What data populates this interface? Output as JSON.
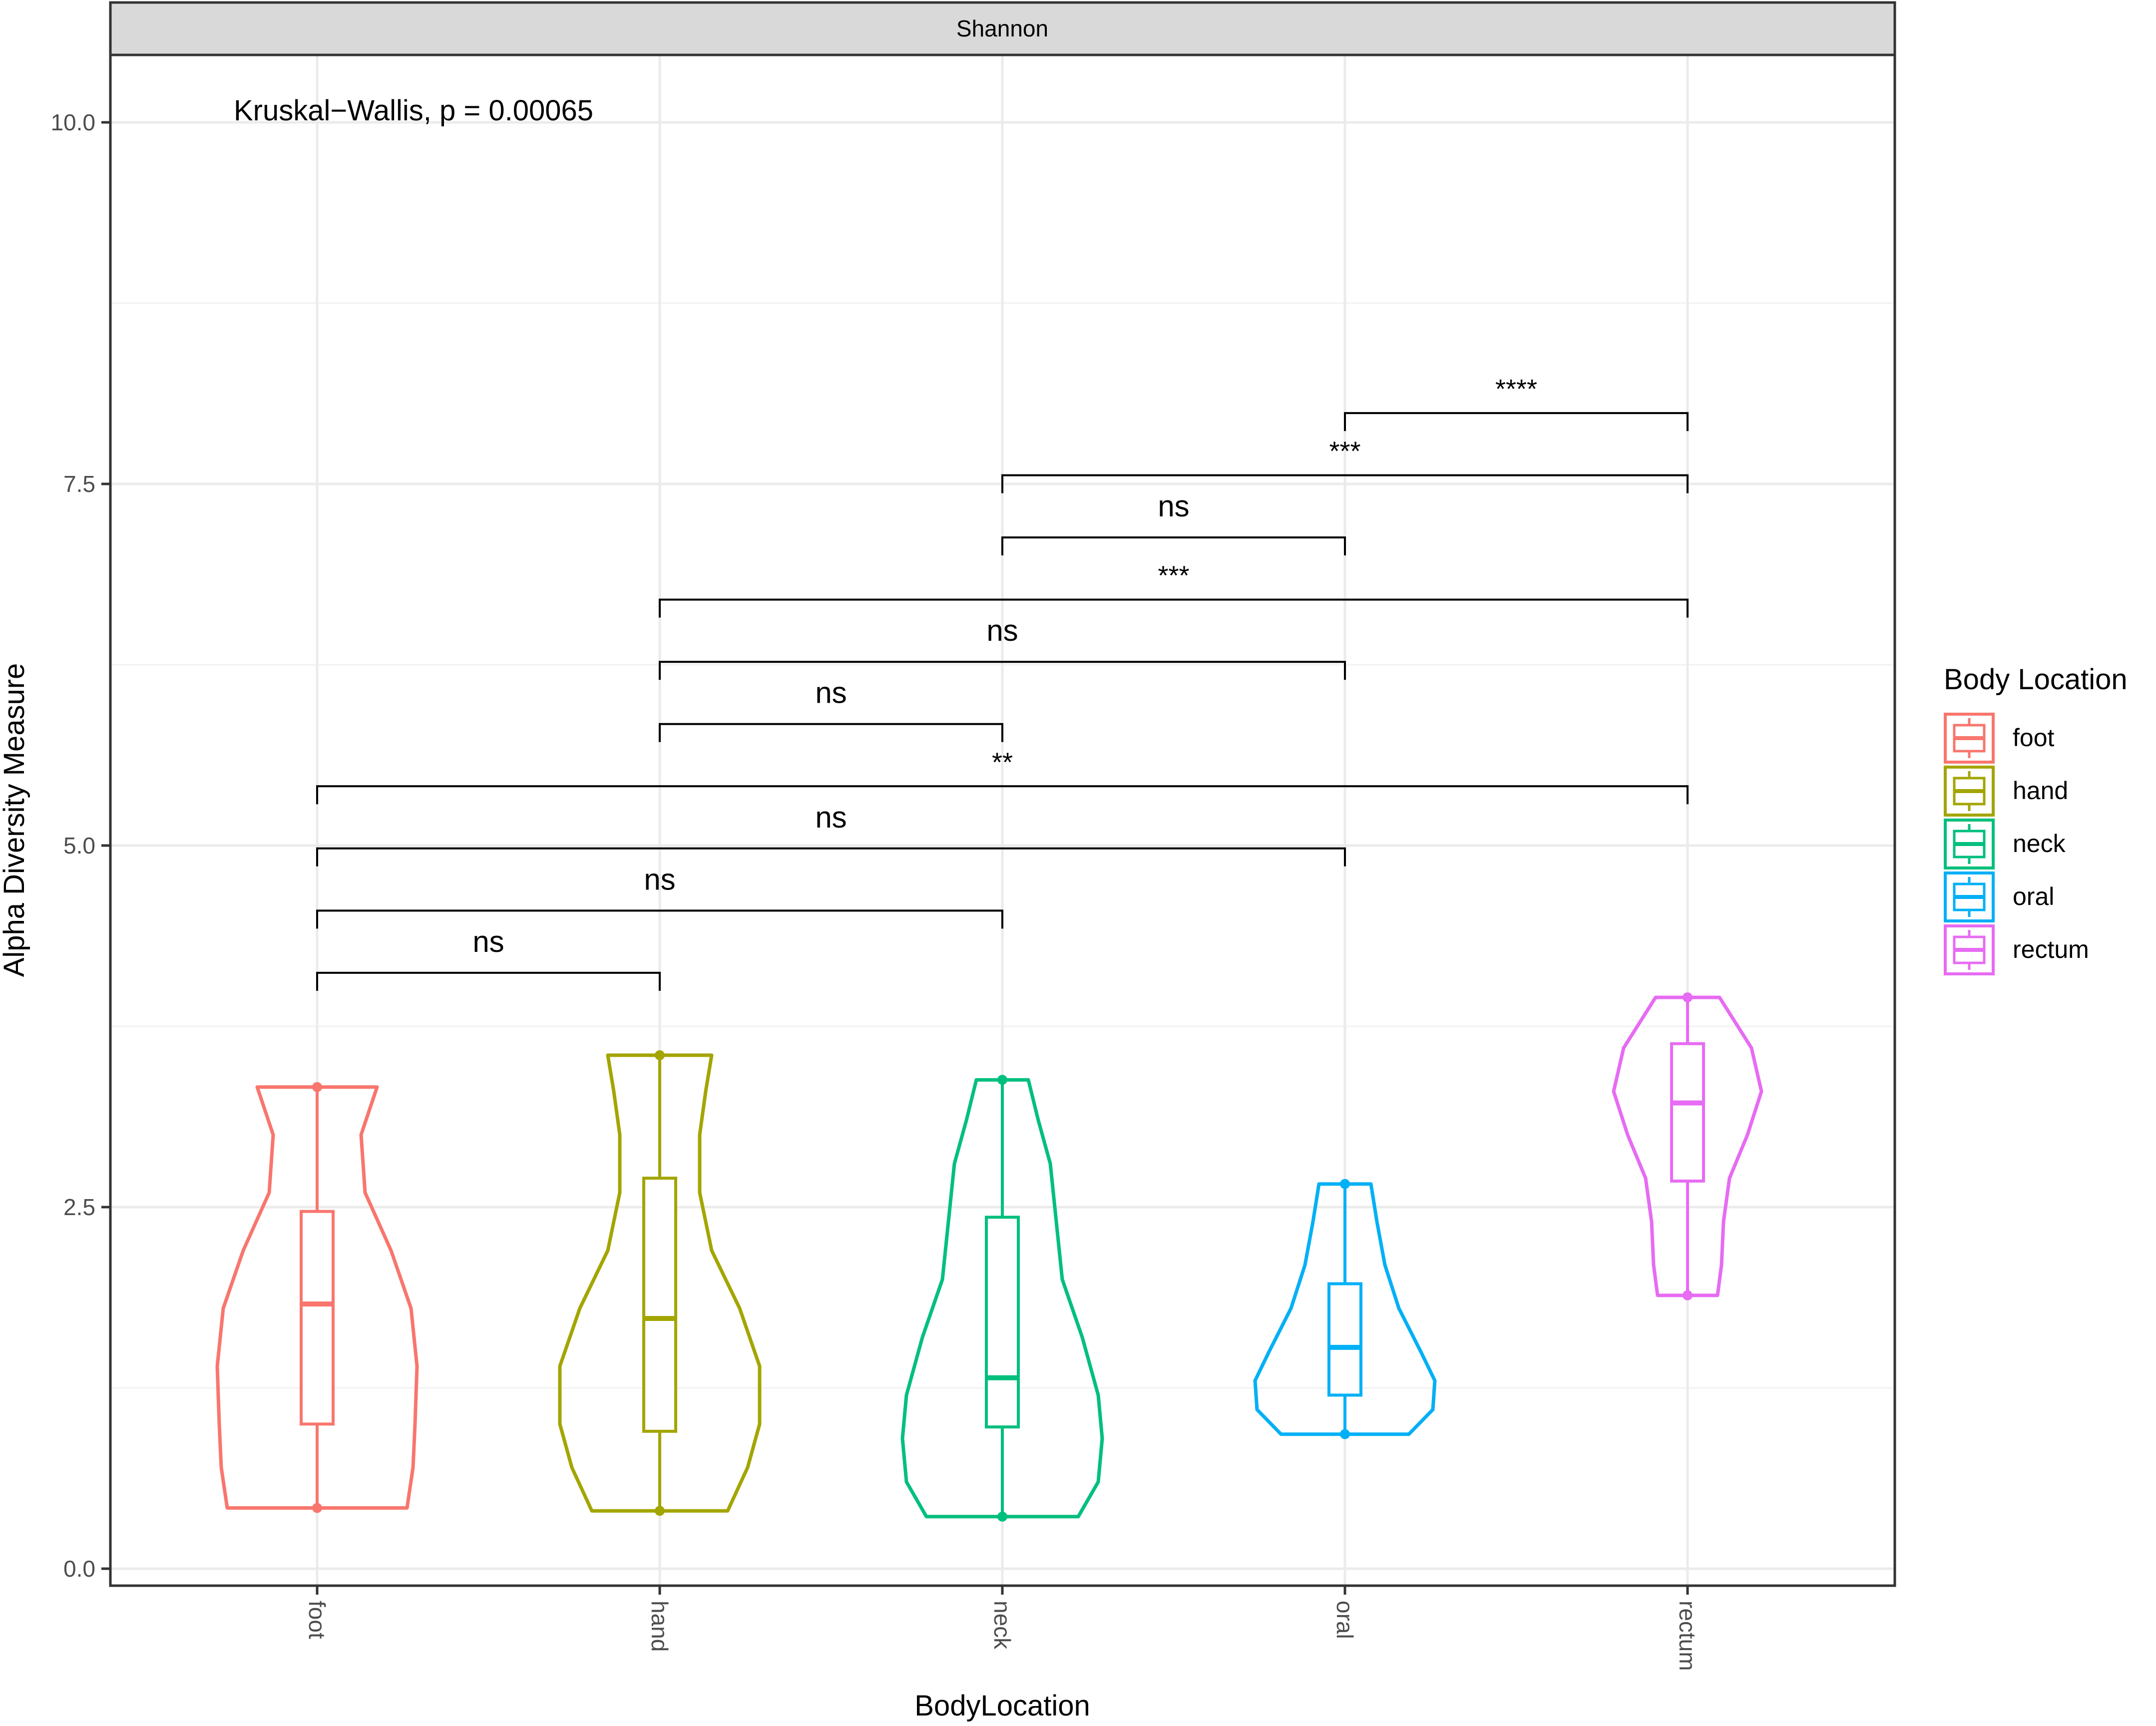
{
  "chart_data": {
    "type": "violin",
    "facet_label": "Shannon",
    "annotation": "Kruskal−Wallis, p = 0.00065",
    "xlabel": "BodyLocation",
    "ylabel": "Alpha Diversity Measure",
    "ylim": [
      -0.1,
      10.5
    ],
    "yticks": [
      "0.0",
      "2.5",
      "5.0",
      "7.5",
      "10.0"
    ],
    "ytick_values": [
      0,
      2.5,
      5,
      7.5,
      10
    ],
    "categories": [
      "foot",
      "hand",
      "neck",
      "oral",
      "rectum"
    ],
    "colors": [
      "#F8766D",
      "#A3A500",
      "#00BF7D",
      "#00B0F6",
      "#E76BF3"
    ],
    "grid": true,
    "legend": {
      "title": "Body Location",
      "position": "right",
      "entries": [
        "foot",
        "hand",
        "neck",
        "oral",
        "rectum"
      ]
    },
    "series": [
      {
        "name": "foot",
        "min": 0.42,
        "q1": 1.0,
        "median": 1.83,
        "q3": 2.47,
        "max": 3.33,
        "violin": [
          [
            0.42,
            0.45
          ],
          [
            0.7,
            0.48
          ],
          [
            1.0,
            0.49
          ],
          [
            1.4,
            0.5
          ],
          [
            1.8,
            0.47
          ],
          [
            2.2,
            0.37
          ],
          [
            2.6,
            0.24
          ],
          [
            3.0,
            0.22
          ],
          [
            3.33,
            0.3
          ]
        ]
      },
      {
        "name": "hand",
        "min": 0.4,
        "q1": 0.95,
        "median": 1.73,
        "q3": 2.7,
        "max": 3.55,
        "violin": [
          [
            0.4,
            0.34
          ],
          [
            0.7,
            0.44
          ],
          [
            1.0,
            0.5
          ],
          [
            1.4,
            0.5
          ],
          [
            1.8,
            0.4
          ],
          [
            2.2,
            0.26
          ],
          [
            2.6,
            0.2
          ],
          [
            3.0,
            0.2
          ],
          [
            3.3,
            0.23
          ],
          [
            3.55,
            0.26
          ]
        ]
      },
      {
        "name": "neck",
        "min": 0.36,
        "q1": 0.98,
        "median": 1.32,
        "q3": 2.43,
        "max": 3.38,
        "violin": [
          [
            0.36,
            0.38
          ],
          [
            0.6,
            0.48
          ],
          [
            0.9,
            0.5
          ],
          [
            1.2,
            0.48
          ],
          [
            1.6,
            0.4
          ],
          [
            2.0,
            0.3
          ],
          [
            2.4,
            0.27
          ],
          [
            2.8,
            0.24
          ],
          [
            3.1,
            0.18
          ],
          [
            3.38,
            0.13
          ]
        ]
      },
      {
        "name": "oral",
        "min": 0.93,
        "q1": 1.2,
        "median": 1.53,
        "q3": 1.97,
        "max": 2.66,
        "violin": [
          [
            0.93,
            0.32
          ],
          [
            1.1,
            0.44
          ],
          [
            1.3,
            0.45
          ],
          [
            1.5,
            0.38
          ],
          [
            1.8,
            0.27
          ],
          [
            2.1,
            0.2
          ],
          [
            2.4,
            0.16
          ],
          [
            2.66,
            0.13
          ]
        ]
      },
      {
        "name": "rectum",
        "min": 1.89,
        "q1": 2.68,
        "median": 3.22,
        "q3": 3.63,
        "max": 3.95,
        "violin": [
          [
            1.89,
            0.15
          ],
          [
            2.1,
            0.17
          ],
          [
            2.4,
            0.18
          ],
          [
            2.7,
            0.21
          ],
          [
            3.0,
            0.3
          ],
          [
            3.3,
            0.37
          ],
          [
            3.6,
            0.32
          ],
          [
            3.95,
            0.16
          ]
        ]
      }
    ],
    "comparisons": [
      {
        "from": "foot",
        "to": "hand",
        "y": 4.12,
        "label": "ns"
      },
      {
        "from": "foot",
        "to": "neck",
        "y": 4.55,
        "label": "ns"
      },
      {
        "from": "foot",
        "to": "oral",
        "y": 4.98,
        "label": "ns"
      },
      {
        "from": "foot",
        "to": "rectum",
        "y": 5.41,
        "label": "**"
      },
      {
        "from": "hand",
        "to": "neck",
        "y": 5.84,
        "label": "ns"
      },
      {
        "from": "hand",
        "to": "oral",
        "y": 6.27,
        "label": "ns"
      },
      {
        "from": "hand",
        "to": "rectum",
        "y": 6.7,
        "label": "***"
      },
      {
        "from": "neck",
        "to": "oral",
        "y": 7.13,
        "label": "ns"
      },
      {
        "from": "neck",
        "to": "rectum",
        "y": 7.56,
        "label": "***"
      },
      {
        "from": "oral",
        "to": "rectum",
        "y": 7.99,
        "label": "****"
      }
    ]
  }
}
